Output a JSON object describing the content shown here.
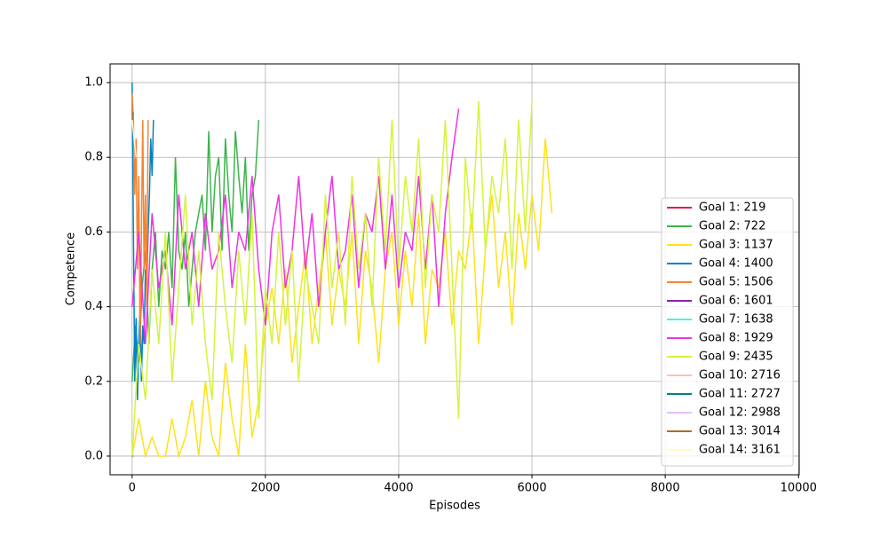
{
  "chart_data": {
    "type": "line",
    "xlabel": "Episodes",
    "ylabel": "Competence",
    "xlim": [
      -330,
      10010
    ],
    "ylim": [
      -0.05,
      1.05
    ],
    "xticks": [
      0,
      2000,
      4000,
      6000,
      8000,
      10000
    ],
    "yticks": [
      {
        "value": 0,
        "label": "0.0"
      },
      0.2,
      0.4,
      0.6,
      0.8,
      {
        "value": 1,
        "label": "1.0"
      }
    ],
    "grid": true,
    "legend": "lower right",
    "series": [
      {
        "name": "Goal 1: 219",
        "color": "#e6194b",
        "x": [
          0,
          20
        ],
        "values": [
          0,
          0
        ]
      },
      {
        "name": "Goal 2: 722",
        "color": "#3cb44b",
        "x": [
          0,
          50,
          100,
          150,
          200,
          250,
          300,
          350,
          400,
          450,
          500,
          550,
          600,
          650,
          700,
          750,
          800,
          850,
          900,
          950,
          1000,
          1050,
          1100,
          1150,
          1200,
          1250,
          1300,
          1350,
          1400,
          1450,
          1500,
          1550,
          1600,
          1650,
          1700,
          1750,
          1800,
          1850,
          1900
        ],
        "values": [
          0.2,
          0.35,
          0.25,
          0.45,
          0.55,
          0.3,
          0.5,
          0.6,
          0.4,
          0.55,
          0.5,
          0.6,
          0.45,
          0.8,
          0.55,
          0.5,
          0.6,
          0.4,
          0.5,
          0.6,
          0.65,
          0.7,
          0.55,
          0.87,
          0.6,
          0.75,
          0.8,
          0.55,
          0.85,
          0.7,
          0.6,
          0.87,
          0.75,
          0.65,
          0.8,
          0.55,
          0.7,
          0.75,
          0.9
        ]
      },
      {
        "name": "Goal 3: 1137",
        "color": "#ffe119",
        "x": [
          0,
          100,
          200,
          300,
          400,
          500,
          600,
          700,
          800,
          900,
          1000,
          1100,
          1200,
          1300,
          1400,
          1500,
          1600,
          1700,
          1800,
          1900,
          2000,
          2100,
          2200,
          2300,
          2400,
          2500,
          2600,
          2700,
          2800,
          2900,
          3000,
          3100,
          3200,
          3300,
          3400,
          3500,
          3600,
          3700,
          3800,
          3900,
          4000,
          4100,
          4200,
          4300,
          4400,
          4500,
          4600,
          4700,
          4800,
          4900,
          5000,
          5100,
          5200,
          5300,
          5400,
          5500,
          5600,
          5700,
          5800,
          5900,
          6000,
          6100,
          6200,
          6300
        ],
        "values": [
          0,
          0.1,
          0,
          0.05,
          0,
          0,
          0.1,
          0,
          0.05,
          0.15,
          0,
          0.2,
          0.05,
          0,
          0.25,
          0.1,
          0,
          0.3,
          0.05,
          0.15,
          0.35,
          0.45,
          0.3,
          0.5,
          0.25,
          0.4,
          0.55,
          0.3,
          0.45,
          0.6,
          0.35,
          0.5,
          0.4,
          0.6,
          0.3,
          0.55,
          0.45,
          0.25,
          0.5,
          0.6,
          0.35,
          0.55,
          0.4,
          0.65,
          0.3,
          0.5,
          0.45,
          0.6,
          0.35,
          0.55,
          0.5,
          0.65,
          0.3,
          0.55,
          0.7,
          0.45,
          0.6,
          0.35,
          0.65,
          0.5,
          0.7,
          0.55,
          0.85,
          0.65
        ]
      },
      {
        "name": "Goal 4: 1400",
        "color": "#0082c8",
        "x": [
          0,
          20,
          40,
          60,
          80,
          100,
          120,
          140,
          160,
          180,
          200,
          220,
          240,
          260,
          280,
          300,
          320
        ],
        "values": [
          1,
          0.6,
          0.2,
          0.37,
          0.15,
          0.3,
          0.4,
          0.2,
          0.35,
          0.3,
          0.5,
          0.45,
          0.6,
          0.7,
          0.85,
          0.75,
          0.9
        ]
      },
      {
        "name": "Goal 5: 1506",
        "color": "#f58231",
        "x": [
          0,
          20,
          40,
          60,
          80,
          100,
          120,
          140,
          160,
          180,
          200,
          220,
          240
        ],
        "values": [
          0.97,
          0.9,
          0.7,
          0.85,
          0.5,
          0.75,
          0.3,
          0.6,
          0.9,
          0.5,
          0.7,
          0.4,
          0.9
        ]
      },
      {
        "name": "Goal 6: 1601",
        "color": "#911eb4",
        "x": [
          0,
          15
        ],
        "values": [
          0,
          0
        ]
      },
      {
        "name": "Goal 7: 1638",
        "color": "#46f0f0",
        "x": [
          0,
          10
        ],
        "values": [
          0,
          0
        ]
      },
      {
        "name": "Goal 8: 1929",
        "color": "#f032e6",
        "x": [
          0,
          100,
          200,
          300,
          400,
          500,
          600,
          700,
          800,
          900,
          1000,
          1100,
          1200,
          1300,
          1400,
          1500,
          1600,
          1700,
          1800,
          1900,
          2000,
          2100,
          2200,
          2300,
          2400,
          2500,
          2600,
          2700,
          2800,
          2900,
          3000,
          3100,
          3200,
          3300,
          3400,
          3500,
          3600,
          3700,
          3800,
          3900,
          4000,
          4100,
          4200,
          4300,
          4400,
          4500,
          4600,
          4700,
          4800,
          4900
        ],
        "values": [
          0.4,
          0.6,
          0.3,
          0.65,
          0.45,
          0.55,
          0.35,
          0.7,
          0.5,
          0.6,
          0.4,
          0.65,
          0.5,
          0.55,
          0.7,
          0.45,
          0.6,
          0.55,
          0.75,
          0.5,
          0.35,
          0.6,
          0.7,
          0.45,
          0.55,
          0.75,
          0.5,
          0.65,
          0.4,
          0.6,
          0.75,
          0.5,
          0.55,
          0.7,
          0.45,
          0.65,
          0.6,
          0.75,
          0.5,
          0.7,
          0.45,
          0.6,
          0.55,
          0.75,
          0.5,
          0.7,
          0.4,
          0.65,
          0.8,
          0.93
        ]
      },
      {
        "name": "Goal 9: 2435",
        "color": "#d2f53c",
        "x": [
          0,
          100,
          200,
          300,
          400,
          500,
          600,
          700,
          800,
          900,
          1000,
          1100,
          1200,
          1300,
          1400,
          1500,
          1600,
          1700,
          1800,
          1900,
          2000,
          2100,
          2200,
          2300,
          2400,
          2500,
          2600,
          2700,
          2800,
          2900,
          3000,
          3100,
          3200,
          3300,
          3400,
          3500,
          3600,
          3700,
          3800,
          3900,
          4000,
          4100,
          4200,
          4300,
          4400,
          4500,
          4600,
          4700,
          4800,
          4900,
          5000,
          5100,
          5200,
          5300,
          5400,
          5500,
          5600,
          5700,
          5800,
          5900,
          6000
        ],
        "values": [
          0,
          0.3,
          0.15,
          0.5,
          0.3,
          0.6,
          0.2,
          0.45,
          0.7,
          0.35,
          0.55,
          0.3,
          0.15,
          0.6,
          0.4,
          0.25,
          0.55,
          0.35,
          0.65,
          0.1,
          0.45,
          0.3,
          0.6,
          0.35,
          0.55,
          0.2,
          0.5,
          0.4,
          0.3,
          0.7,
          0.45,
          0.6,
          0.35,
          0.75,
          0.5,
          0.65,
          0.4,
          0.8,
          0.55,
          0.9,
          0.5,
          0.75,
          0.6,
          0.85,
          0.45,
          0.7,
          0.6,
          0.9,
          0.5,
          0.1,
          0.8,
          0.6,
          0.95,
          0.55,
          0.75,
          0.65,
          0.85,
          0.5,
          0.9,
          0.6,
          0.95
        ]
      },
      {
        "name": "Goal 10: 2716",
        "color": "#fabebe",
        "x": [
          0,
          10
        ],
        "values": [
          0,
          0
        ]
      },
      {
        "name": "Goal 11: 2727",
        "color": "#008080",
        "x": [
          0,
          10
        ],
        "values": [
          0,
          0
        ]
      },
      {
        "name": "Goal 12: 2988",
        "color": "#e6beff",
        "x": [
          0,
          10
        ],
        "values": [
          0,
          0
        ]
      },
      {
        "name": "Goal 13: 3014",
        "color": "#aa6e28",
        "x": [
          0,
          20
        ],
        "values": [
          0.9,
          0.92
        ]
      },
      {
        "name": "Goal 14: 3161",
        "color": "#fffac8",
        "x": [
          0,
          30,
          60
        ],
        "values": [
          0.9,
          0.85,
          0.8
        ]
      }
    ]
  }
}
